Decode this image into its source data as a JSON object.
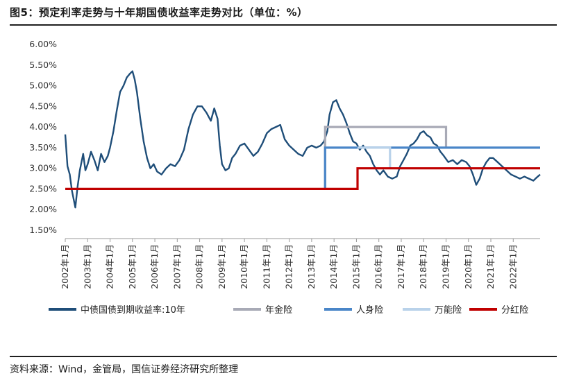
{
  "header": {
    "title": "图5：预定利率走势与十年期国债收益率走势对比（单位：%）"
  },
  "footer": {
    "source": "资料来源：Wind，金管局，国信证券经济研究所整理"
  },
  "chart_data": {
    "type": "line",
    "title": "图5：预定利率走势与十年期国债收益率走势对比（单位：%）",
    "xlabel": "",
    "ylabel": "",
    "ylim": [
      1.5,
      6.0
    ],
    "xlim": [
      2002.0,
      2023.2
    ],
    "grid": false,
    "legend_position": "bottom",
    "y_ticks": [
      "6.00%",
      "5.50%",
      "5.00%",
      "4.50%",
      "4.00%",
      "3.50%",
      "3.00%",
      "2.50%",
      "2.00%",
      "1.50%"
    ],
    "y_tick_values": [
      6.0,
      5.5,
      5.0,
      4.5,
      4.0,
      3.5,
      3.0,
      2.5,
      2.0,
      1.5
    ],
    "x_ticks": [
      "2002年1月",
      "2003年1月",
      "2004年1月",
      "2005年1月",
      "2006年1月",
      "2007年1月",
      "2008年1月",
      "2009年1月",
      "2010年1月",
      "2011年1月",
      "2012年1月",
      "2013年1月",
      "2014年1月",
      "2015年1月",
      "2016年1月",
      "2017年1月",
      "2018年1月",
      "2019年1月",
      "2020年1月",
      "2021年1月",
      "2022年1月"
    ],
    "x_tick_values": [
      2002,
      2003,
      2004,
      2005,
      2006,
      2007,
      2008,
      2009,
      2010,
      2011,
      2012,
      2013,
      2014,
      2015,
      2016,
      2017,
      2018,
      2019,
      2020,
      2021,
      2022
    ],
    "series": [
      {
        "name": "中债国债到期收益率:10年",
        "color": "#1f4e79",
        "x": [
          2002.0,
          2002.1,
          2002.2,
          2002.3,
          2002.45,
          2002.55,
          2002.65,
          2002.8,
          2002.9,
          2003.0,
          2003.15,
          2003.3,
          2003.45,
          2003.6,
          2003.75,
          2003.9,
          2004.0,
          2004.15,
          2004.3,
          2004.45,
          2004.6,
          2004.75,
          2004.9,
          2005.0,
          2005.1,
          2005.2,
          2005.35,
          2005.5,
          2005.65,
          2005.8,
          2005.95,
          2006.1,
          2006.3,
          2006.5,
          2006.7,
          2006.9,
          2007.1,
          2007.3,
          2007.5,
          2007.7,
          2007.9,
          2008.1,
          2008.3,
          2008.5,
          2008.65,
          2008.8,
          2008.9,
          2009.0,
          2009.15,
          2009.3,
          2009.45,
          2009.6,
          2009.8,
          2010.0,
          2010.2,
          2010.4,
          2010.6,
          2010.8,
          2011.0,
          2011.2,
          2011.4,
          2011.6,
          2011.8,
          2012.0,
          2012.2,
          2012.4,
          2012.6,
          2012.8,
          2013.0,
          2013.2,
          2013.4,
          2013.55,
          2013.7,
          2013.8,
          2013.95,
          2014.1,
          2014.25,
          2014.4,
          2014.55,
          2014.7,
          2014.85,
          2015.0,
          2015.15,
          2015.3,
          2015.45,
          2015.6,
          2015.75,
          2015.9,
          2016.05,
          2016.2,
          2016.4,
          2016.6,
          2016.8,
          2016.95,
          2017.1,
          2017.25,
          2017.4,
          2017.55,
          2017.7,
          2017.85,
          2018.0,
          2018.15,
          2018.3,
          2018.45,
          2018.6,
          2018.75,
          2018.9,
          2019.1,
          2019.3,
          2019.5,
          2019.7,
          2019.9,
          2020.05,
          2020.2,
          2020.35,
          2020.5,
          2020.65,
          2020.8,
          2020.95,
          2021.1,
          2021.3,
          2021.5,
          2021.7,
          2021.9,
          2022.1,
          2022.3,
          2022.5,
          2022.7,
          2022.9,
          2023.05,
          2023.2
        ],
        "values": [
          3.82,
          3.05,
          2.85,
          2.45,
          2.05,
          2.55,
          2.95,
          3.35,
          2.95,
          3.1,
          3.4,
          3.2,
          2.95,
          3.35,
          3.15,
          3.3,
          3.5,
          3.9,
          4.4,
          4.85,
          5.0,
          5.2,
          5.3,
          5.35,
          5.15,
          4.85,
          4.2,
          3.65,
          3.25,
          3.0,
          3.1,
          2.92,
          2.85,
          3.0,
          3.1,
          3.05,
          3.2,
          3.45,
          3.95,
          4.3,
          4.5,
          4.5,
          4.35,
          4.15,
          4.45,
          4.2,
          3.55,
          3.1,
          2.95,
          3.0,
          3.25,
          3.35,
          3.55,
          3.6,
          3.45,
          3.3,
          3.4,
          3.6,
          3.85,
          3.95,
          4.0,
          4.05,
          3.7,
          3.55,
          3.45,
          3.35,
          3.3,
          3.5,
          3.55,
          3.5,
          3.55,
          3.65,
          3.9,
          4.3,
          4.6,
          4.65,
          4.45,
          4.3,
          4.1,
          3.85,
          3.65,
          3.6,
          3.45,
          3.55,
          3.4,
          3.3,
          3.1,
          2.95,
          2.85,
          2.95,
          2.8,
          2.75,
          2.8,
          3.05,
          3.2,
          3.35,
          3.55,
          3.6,
          3.7,
          3.85,
          3.9,
          3.8,
          3.75,
          3.6,
          3.55,
          3.4,
          3.3,
          3.15,
          3.2,
          3.1,
          3.2,
          3.15,
          3.05,
          2.85,
          2.6,
          2.75,
          3.0,
          3.15,
          3.25,
          3.25,
          3.15,
          3.05,
          2.95,
          2.85,
          2.8,
          2.75,
          2.8,
          2.75,
          2.7,
          2.78,
          2.85
        ]
      },
      {
        "name": "年金险",
        "color": "#a8aab6",
        "x": [
          2013.6,
          2013.6,
          2019.0,
          2019.0
        ],
        "values": [
          2.5,
          4.0,
          4.0,
          3.5
        ]
      },
      {
        "name": "人身险",
        "color": "#4a86c8",
        "x": [
          2013.6,
          2013.6,
          2023.2
        ],
        "values": [
          2.5,
          3.5,
          3.5
        ]
      },
      {
        "name": "万能险",
        "color": "#b9d2ea",
        "x": [
          2015.05,
          2015.05,
          2016.5,
          2016.5
        ],
        "values": [
          3.5,
          3.5,
          3.5,
          3.0
        ]
      },
      {
        "name": "分红险",
        "color": "#c00000",
        "x": [
          2002.0,
          2015.05,
          2015.05,
          2023.2
        ],
        "values": [
          2.5,
          2.5,
          3.0,
          3.0
        ]
      }
    ]
  }
}
